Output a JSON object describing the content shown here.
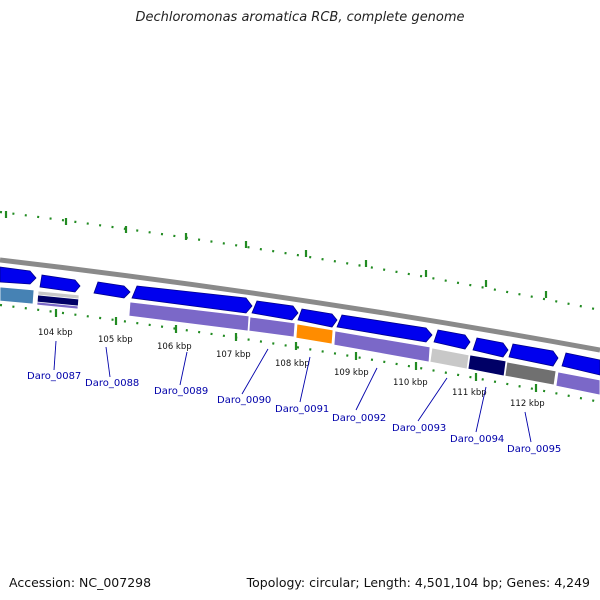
{
  "title": "Dechloromonas aromatica RCB, complete genome",
  "footer": {
    "accession": "Accession: NC_007298",
    "summary": "Topology: circular; Length: 4,501,104 bp; Genes: 4,249"
  },
  "scale": {
    "unit": "kbp",
    "ticks": [
      "104 kbp",
      "105 kbp",
      "106 kbp",
      "107 kbp",
      "108 kbp",
      "109 kbp",
      "110 kbp",
      "111 kbp",
      "112 kbp"
    ]
  },
  "colors": {
    "strand_forward": "#0000ee",
    "cog_purple": "#7b68c8",
    "cog_orange": "#ff8c00",
    "cog_light_gray": "#c8c8c8",
    "cog_navy": "#000066",
    "cog_dark_gray": "#707070",
    "cog_steel": "#4682b4",
    "backbone": "#888888",
    "dotted_track": "#228b22",
    "label_color": "#0000aa"
  },
  "genes": [
    {
      "label": "Daro_0087"
    },
    {
      "label": "Daro_0088"
    },
    {
      "label": "Daro_0089"
    },
    {
      "label": "Daro_0090"
    },
    {
      "label": "Daro_0091"
    },
    {
      "label": "Daro_0092"
    },
    {
      "label": "Daro_0093"
    },
    {
      "label": "Daro_0094"
    },
    {
      "label": "Daro_0095"
    }
  ]
}
